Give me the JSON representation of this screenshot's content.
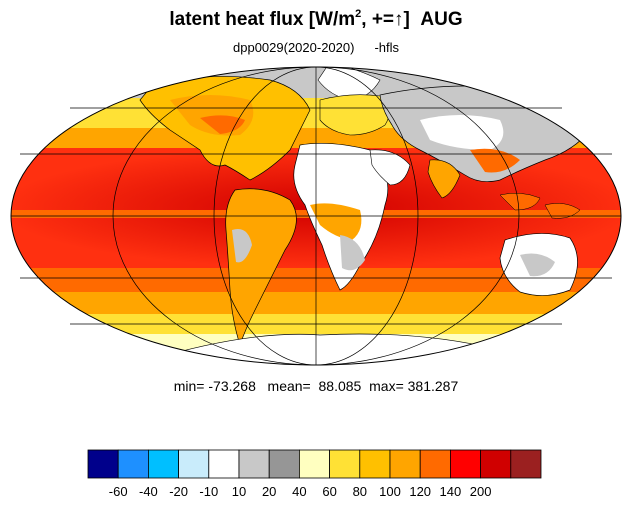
{
  "title": {
    "text": "latent heat flux [W/m",
    "sup": "2",
    "after": ", +=",
    "arrow": "↑",
    "close": "]",
    "month": "AUG"
  },
  "subtitle": {
    "run": "dpp0029(2020-2020)",
    "variable": "-hfls"
  },
  "stats": {
    "min_label": "min=",
    "min": "-73.268",
    "mean_label": "mean=",
    "mean": "88.085",
    "max_label": "max=",
    "max": "381.287"
  },
  "colorbar": {
    "colors": [
      "#00008b",
      "#1e90ff",
      "#00bfff",
      "#c9ecfb",
      "#ffffff",
      "#c8c8c8",
      "#969696",
      "#ffffc0",
      "#ffe135",
      "#ffc000",
      "#ffa500",
      "#ff6a00",
      "#ff0000",
      "#d00000",
      "#9b2020"
    ],
    "labels": [
      "-60",
      "-40",
      "-20",
      "-10",
      "10",
      "20",
      "40",
      "60",
      "80",
      "100",
      "120",
      "140",
      "200"
    ]
  },
  "map": {
    "projection": "Mollweide",
    "ocean_color": "#e52a14",
    "land_color": "#ffffff",
    "coastline_color": "#000000",
    "grid_color": "#000000"
  }
}
